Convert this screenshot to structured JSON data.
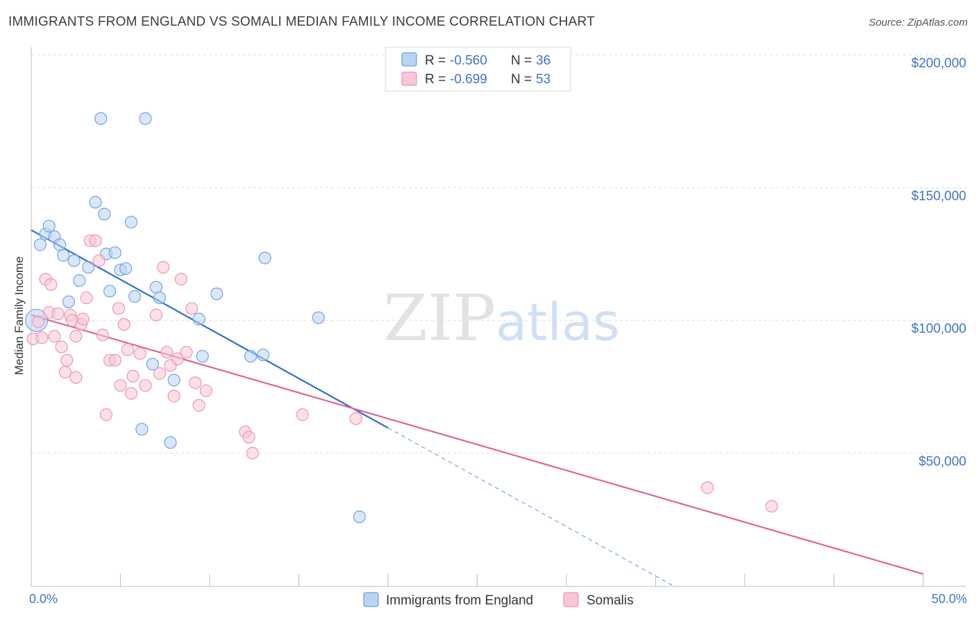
{
  "title": "IMMIGRANTS FROM ENGLAND VS SOMALI MEDIAN FAMILY INCOME CORRELATION CHART",
  "source": "Source: ZipAtlas.com",
  "watermark": {
    "zip": "ZIP",
    "atlas": "atlas"
  },
  "colors": {
    "england": "#6fa3e0",
    "england_fill": "#b9d3f3",
    "england_line": "#2a6fcf",
    "somali": "#ef94b2",
    "somali_fill": "#f8c6d6",
    "somali_line": "#e06592",
    "tick_text": "#3d74c9",
    "grid": "#dddddd"
  },
  "legend": {
    "england": {
      "r_label": "R = ",
      "r_value": "-0.560",
      "n_label": "N = ",
      "n_value": "36"
    },
    "somali": {
      "r_label": "R = ",
      "r_value": "-0.699",
      "n_label": "N = ",
      "n_value": "53"
    }
  },
  "bottom_legend": {
    "england": "Immigrants from England",
    "somali": "Somalis"
  },
  "chart_data": {
    "type": "scatter",
    "title": "IMMIGRANTS FROM ENGLAND VS SOMALI MEDIAN FAMILY INCOME CORRELATION CHART",
    "xlabel": "",
    "ylabel": "Median Family Income",
    "xlim": [
      0,
      50
    ],
    "ylim": [
      5000,
      210000
    ],
    "x_tick_labels": [
      {
        "value": 0,
        "label": "0.0%"
      },
      {
        "value": 50,
        "label": "50.0%"
      }
    ],
    "y_ticks": [
      {
        "value": 50000,
        "label": "$50,000"
      },
      {
        "value": 100000,
        "label": "$100,000"
      },
      {
        "value": 150000,
        "label": "$150,000"
      },
      {
        "value": 200000,
        "label": "$200,000"
      }
    ],
    "series": [
      {
        "name": "Immigrants from England",
        "color": "#6fa3e0",
        "trend": {
          "x0": 0,
          "y0": 134000,
          "x1": 20,
          "y1": 59500,
          "dashed_to_x": 36,
          "dashed_to_y": 0
        },
        "points": [
          [
            0.3,
            100000,
            1
          ],
          [
            0.5,
            128500,
            0
          ],
          [
            0.8,
            132500,
            0
          ],
          [
            1.0,
            135500,
            0
          ],
          [
            1.3,
            131500,
            0
          ],
          [
            1.6,
            128500,
            0
          ],
          [
            1.8,
            124500,
            0
          ],
          [
            2.1,
            107000,
            0
          ],
          [
            2.4,
            122500,
            0
          ],
          [
            2.7,
            115000,
            0
          ],
          [
            3.2,
            120000,
            0
          ],
          [
            3.6,
            144500,
            0
          ],
          [
            3.9,
            176000,
            0
          ],
          [
            4.1,
            140000,
            0
          ],
          [
            4.2,
            125000,
            0
          ],
          [
            4.4,
            111000,
            0
          ],
          [
            4.7,
            125500,
            0
          ],
          [
            5.0,
            119000,
            0
          ],
          [
            5.3,
            119500,
            0
          ],
          [
            5.6,
            137000,
            0
          ],
          [
            5.8,
            109000,
            0
          ],
          [
            6.2,
            59000,
            0
          ],
          [
            6.4,
            176000,
            0
          ],
          [
            6.8,
            83500,
            0
          ],
          [
            7.0,
            112500,
            0
          ],
          [
            7.2,
            108500,
            0
          ],
          [
            7.8,
            54000,
            0
          ],
          [
            8.0,
            77500,
            0
          ],
          [
            9.4,
            100500,
            0
          ],
          [
            9.6,
            86500,
            0
          ],
          [
            10.4,
            110000,
            0
          ],
          [
            12.3,
            86500,
            0
          ],
          [
            13.0,
            87000,
            0
          ],
          [
            13.1,
            123500,
            0
          ],
          [
            16.1,
            101000,
            0
          ],
          [
            18.4,
            26000,
            0
          ]
        ]
      },
      {
        "name": "Somalis",
        "color": "#ef94b2",
        "trend": {
          "x0": 0,
          "y0": 102000,
          "x1": 50,
          "y1": 4500
        },
        "points": [
          [
            0.1,
            93000,
            0
          ],
          [
            0.4,
            99500,
            0
          ],
          [
            0.6,
            93500,
            0
          ],
          [
            0.8,
            115500,
            0
          ],
          [
            1.0,
            103000,
            0
          ],
          [
            1.1,
            113500,
            0
          ],
          [
            1.3,
            94000,
            0
          ],
          [
            1.5,
            102500,
            0
          ],
          [
            1.7,
            90000,
            0
          ],
          [
            1.9,
            80500,
            0
          ],
          [
            2.0,
            85000,
            0
          ],
          [
            2.2,
            102000,
            0
          ],
          [
            2.3,
            100000,
            0
          ],
          [
            2.5,
            94000,
            0
          ],
          [
            2.5,
            78500,
            0
          ],
          [
            2.8,
            98500,
            0
          ],
          [
            2.9,
            100500,
            0
          ],
          [
            3.1,
            108500,
            0
          ],
          [
            3.3,
            130000,
            0
          ],
          [
            3.6,
            130000,
            0
          ],
          [
            3.8,
            122500,
            0
          ],
          [
            4.0,
            94500,
            0
          ],
          [
            4.2,
            64500,
            0
          ],
          [
            4.4,
            85000,
            0
          ],
          [
            4.7,
            85000,
            0
          ],
          [
            4.9,
            104500,
            0
          ],
          [
            5.0,
            75500,
            0
          ],
          [
            5.2,
            98500,
            0
          ],
          [
            5.4,
            89000,
            0
          ],
          [
            5.6,
            72500,
            0
          ],
          [
            5.7,
            79000,
            0
          ],
          [
            6.1,
            87500,
            0
          ],
          [
            6.4,
            75500,
            0
          ],
          [
            7.0,
            102000,
            0
          ],
          [
            7.2,
            80000,
            0
          ],
          [
            7.4,
            120000,
            0
          ],
          [
            7.6,
            88000,
            0
          ],
          [
            7.8,
            83000,
            0
          ],
          [
            8.0,
            71500,
            0
          ],
          [
            8.2,
            85500,
            0
          ],
          [
            8.4,
            115500,
            0
          ],
          [
            8.7,
            88000,
            0
          ],
          [
            9.0,
            104500,
            0
          ],
          [
            9.2,
            76500,
            0
          ],
          [
            9.4,
            68000,
            0
          ],
          [
            9.8,
            73500,
            0
          ],
          [
            12.0,
            58000,
            0
          ],
          [
            12.2,
            56000,
            0
          ],
          [
            12.4,
            50000,
            0
          ],
          [
            15.2,
            64500,
            0
          ],
          [
            18.2,
            63000,
            0
          ],
          [
            37.9,
            37000,
            0
          ],
          [
            41.5,
            30000,
            0
          ]
        ]
      }
    ]
  }
}
